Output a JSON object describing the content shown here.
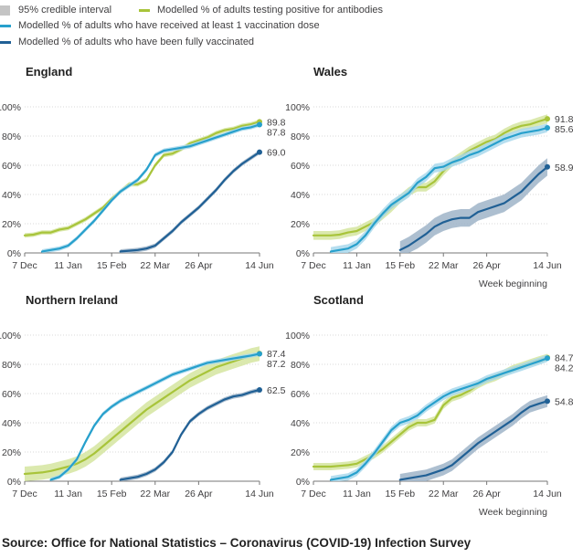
{
  "legend": {
    "ci": "95% credible interval",
    "antibodies": "Modelled % of adults testing positive for antibodies",
    "first_dose": "Modelled % of adults who have received at least 1 vaccination dose",
    "fully_vaccinated": "Modelled % of adults who have been fully vaccinated"
  },
  "colors": {
    "antibodies": "#a8c43a",
    "antibodies_ci": "#d5e5a0",
    "first_dose": "#27a0cc",
    "first_dose_ci": "#a9d8ec",
    "fully": "#206095",
    "fully_ci": "#9fb4c8",
    "grid": "#d9d9d9",
    "axis": "#777777",
    "legend_ci": "#c4c4c4"
  },
  "source": "Source: Office for National Statistics – Coronavirus (COVID-19) Infection Survey",
  "chart_data": [
    {
      "type": "line",
      "title": "England",
      "x_axis_label": "",
      "ylim": [
        0,
        100
      ],
      "yticks": [
        "0%",
        "20%",
        "40%",
        "60%",
        "80%",
        "100%"
      ],
      "xlim": [
        0,
        27
      ],
      "xtick_weeks": [
        0,
        5,
        10,
        15,
        20,
        27
      ],
      "xtick_labels": [
        "7 Dec",
        "11 Jan",
        "15 Feb",
        "22 Mar",
        "26 Apr",
        "14 Jun"
      ],
      "series": [
        {
          "name": "Modelled % of adults testing positive for antibodies",
          "key": "antibodies",
          "ci_width": 1.5,
          "x": [
            0,
            1,
            2,
            3,
            4,
            5,
            6,
            7,
            8,
            9,
            10,
            11,
            12,
            13,
            14,
            15,
            16,
            17,
            18,
            19,
            20,
            21,
            22,
            23,
            24,
            25,
            26,
            27
          ],
          "values": [
            12,
            12.5,
            14,
            14,
            16,
            17,
            20,
            23,
            27,
            31,
            37,
            42,
            47,
            47,
            50,
            60,
            67,
            68,
            71,
            75,
            77,
            79,
            82,
            84,
            85,
            87,
            88,
            89.8
          ],
          "end_label": "89.8"
        },
        {
          "name": "Modelled % of adults who have received at least 1 vaccination dose",
          "key": "first_dose",
          "ci_width": 1.5,
          "x": [
            2,
            3,
            4,
            5,
            6,
            7,
            8,
            9,
            10,
            11,
            12,
            13,
            14,
            15,
            16,
            17,
            18,
            19,
            20,
            21,
            22,
            23,
            24,
            25,
            26,
            27
          ],
          "values": [
            1,
            2,
            3,
            5,
            10,
            16,
            22,
            29,
            36,
            42,
            46,
            50,
            57,
            67,
            70,
            71,
            72,
            73,
            75,
            77,
            79,
            81,
            83,
            85,
            86,
            87.8
          ],
          "end_label": "87.8"
        },
        {
          "name": "Modelled % of adults who have been fully vaccinated",
          "key": "fully",
          "ci_width": 1.5,
          "x": [
            11,
            12,
            13,
            14,
            15,
            16,
            17,
            18,
            19,
            20,
            21,
            22,
            23,
            24,
            25,
            26,
            27
          ],
          "values": [
            1,
            1.5,
            2,
            3,
            5,
            10,
            15,
            21,
            26,
            31,
            37,
            43,
            50,
            56,
            61,
            65,
            69
          ],
          "end_label": "69.0"
        }
      ]
    },
    {
      "type": "line",
      "title": "Wales",
      "x_axis_label": "Week beginning",
      "ylim": [
        0,
        100
      ],
      "yticks": [
        "0%",
        "20%",
        "40%",
        "60%",
        "80%",
        "100%"
      ],
      "xlim": [
        0,
        27
      ],
      "xtick_weeks": [
        0,
        5,
        10,
        15,
        20,
        27
      ],
      "xtick_labels": [
        "7 Dec",
        "11 Jan",
        "15 Feb",
        "22 Mar",
        "26 Apr",
        "14 Jun"
      ],
      "series": [
        {
          "name": "Modelled % of adults testing positive for antibodies",
          "key": "antibodies",
          "ci_width": 3,
          "x": [
            0,
            1,
            2,
            3,
            4,
            5,
            6,
            7,
            8,
            9,
            10,
            11,
            12,
            13,
            14,
            15,
            16,
            17,
            18,
            19,
            20,
            21,
            22,
            23,
            24,
            25,
            26,
            27
          ],
          "values": [
            12,
            12,
            12,
            12.5,
            14,
            15,
            18,
            21,
            26,
            31,
            37,
            42,
            45,
            45,
            49,
            56,
            62,
            66,
            70,
            73,
            76,
            78,
            82,
            85,
            87,
            88,
            90,
            91.8
          ],
          "end_label": "91.8"
        },
        {
          "name": "Modelled % of adults who have received at least 1 vaccination dose",
          "key": "first_dose",
          "ci_width": 3,
          "x": [
            2,
            3,
            4,
            5,
            6,
            7,
            8,
            9,
            10,
            11,
            12,
            13,
            14,
            15,
            16,
            17,
            18,
            19,
            20,
            21,
            22,
            23,
            24,
            25,
            26,
            27
          ],
          "values": [
            1,
            2,
            3,
            6,
            12,
            20,
            27,
            33,
            37,
            41,
            48,
            52,
            58,
            59,
            62,
            64,
            67,
            69,
            72,
            75,
            78,
            80,
            82,
            83,
            84,
            85.6
          ],
          "end_label": "85.6"
        },
        {
          "name": "Modelled % of adults who have been fully vaccinated",
          "key": "fully",
          "ci_width": 6,
          "x": [
            10,
            11,
            12,
            13,
            14,
            15,
            16,
            17,
            18,
            19,
            20,
            21,
            22,
            23,
            24,
            25,
            26,
            27
          ],
          "values": [
            2,
            5,
            9,
            13,
            18,
            21,
            23,
            24,
            24,
            28,
            30,
            32,
            34,
            38,
            42,
            48,
            54,
            58.9
          ],
          "end_label": "58.9"
        }
      ]
    },
    {
      "type": "line",
      "title": "Northern Ireland",
      "x_axis_label": "",
      "ylim": [
        0,
        100
      ],
      "yticks": [
        "0%",
        "20%",
        "40%",
        "60%",
        "80%",
        "100%"
      ],
      "xlim": [
        0,
        27
      ],
      "xtick_weeks": [
        0,
        5,
        10,
        15,
        20,
        27
      ],
      "xtick_labels": [
        "7 Dec",
        "11 Jan",
        "15 Feb",
        "22 Mar",
        "26 Apr",
        "14 Jun"
      ],
      "series": [
        {
          "name": "Modelled % of adults testing positive for antibodies",
          "key": "antibodies",
          "ci_width": 5,
          "x": [
            0,
            1,
            2,
            3,
            4,
            5,
            6,
            7,
            8,
            9,
            10,
            11,
            12,
            13,
            14,
            15,
            16,
            17,
            18,
            19,
            20,
            21,
            22,
            23,
            24,
            25,
            26,
            27
          ],
          "values": [
            5,
            5.5,
            6,
            7,
            8.5,
            10,
            12,
            15,
            19,
            24,
            29,
            34,
            39,
            44,
            49,
            53,
            57,
            61,
            65,
            69,
            72,
            75,
            78,
            80,
            82,
            84,
            86,
            87.4
          ],
          "end_label": "87.4"
        },
        {
          "name": "Modelled % of adults who have received at least 1 vaccination dose",
          "key": "first_dose",
          "ci_width": 1.5,
          "x": [
            3,
            4,
            5,
            6,
            7,
            8,
            9,
            10,
            11,
            12,
            13,
            14,
            15,
            16,
            17,
            18,
            19,
            20,
            21,
            22,
            23,
            24,
            25,
            26,
            27
          ],
          "values": [
            1,
            3,
            8,
            15,
            27,
            38,
            46,
            51,
            55,
            58,
            61,
            64,
            67,
            70,
            73,
            75,
            77,
            79,
            81,
            82,
            83,
            84,
            85,
            86,
            87.2
          ],
          "end_label": "87.2"
        },
        {
          "name": "Modelled % of adults who have been fully vaccinated",
          "key": "fully",
          "ci_width": 1.5,
          "x": [
            11,
            12,
            13,
            14,
            15,
            16,
            17,
            18,
            19,
            20,
            21,
            22,
            23,
            24,
            25,
            26,
            27
          ],
          "values": [
            1,
            2,
            3,
            5,
            8,
            13,
            20,
            32,
            41,
            46,
            50,
            53,
            56,
            58,
            59,
            61,
            62.5
          ],
          "end_label": "62.5"
        }
      ]
    },
    {
      "type": "line",
      "title": "Scotland",
      "x_axis_label": "Week beginning",
      "ylim": [
        0,
        100
      ],
      "yticks": [
        "0%",
        "20%",
        "40%",
        "60%",
        "80%",
        "100%"
      ],
      "xlim": [
        0,
        27
      ],
      "xtick_weeks": [
        0,
        5,
        10,
        15,
        20,
        27
      ],
      "xtick_labels": [
        "7 Dec",
        "11 Jan",
        "15 Feb",
        "22 Mar",
        "26 Apr",
        "14 Jun"
      ],
      "series": [
        {
          "name": "Modelled % of adults testing positive for antibodies",
          "key": "antibodies",
          "ci_width": 2.5,
          "x": [
            0,
            1,
            2,
            3,
            4,
            5,
            6,
            7,
            8,
            9,
            10,
            11,
            12,
            13,
            14,
            15,
            16,
            17,
            18,
            19,
            20,
            21,
            22,
            23,
            24,
            25,
            26,
            27
          ],
          "values": [
            10,
            10,
            10,
            10.5,
            11,
            12,
            15,
            18,
            22,
            27,
            32,
            37,
            40,
            40,
            42,
            52,
            57,
            59,
            62,
            66,
            69,
            71,
            74,
            77,
            79,
            81,
            83,
            84.7
          ],
          "end_label": "84.7"
        },
        {
          "name": "Modelled % of adults who have received at least 1 vaccination dose",
          "key": "first_dose",
          "ci_width": 2.5,
          "x": [
            2,
            3,
            4,
            5,
            6,
            7,
            8,
            9,
            10,
            11,
            12,
            13,
            14,
            15,
            16,
            17,
            18,
            19,
            20,
            21,
            22,
            23,
            24,
            25,
            26,
            27
          ],
          "values": [
            1,
            2,
            3,
            6,
            12,
            19,
            27,
            35,
            40,
            42,
            45,
            50,
            54,
            58,
            61,
            63,
            65,
            67,
            70,
            72,
            74,
            76,
            78,
            80,
            82,
            84.2
          ],
          "end_label": "84.2"
        },
        {
          "name": "Modelled % of adults who have been fully vaccinated",
          "key": "fully",
          "ci_width": 4,
          "x": [
            10,
            11,
            12,
            13,
            14,
            15,
            16,
            17,
            18,
            19,
            20,
            21,
            22,
            23,
            24,
            25,
            26,
            27
          ],
          "values": [
            1,
            2,
            3,
            4,
            6,
            8,
            11,
            16,
            21,
            26,
            30,
            34,
            38,
            42,
            47,
            51,
            53,
            54.8
          ],
          "end_label": "54.8"
        }
      ]
    }
  ]
}
